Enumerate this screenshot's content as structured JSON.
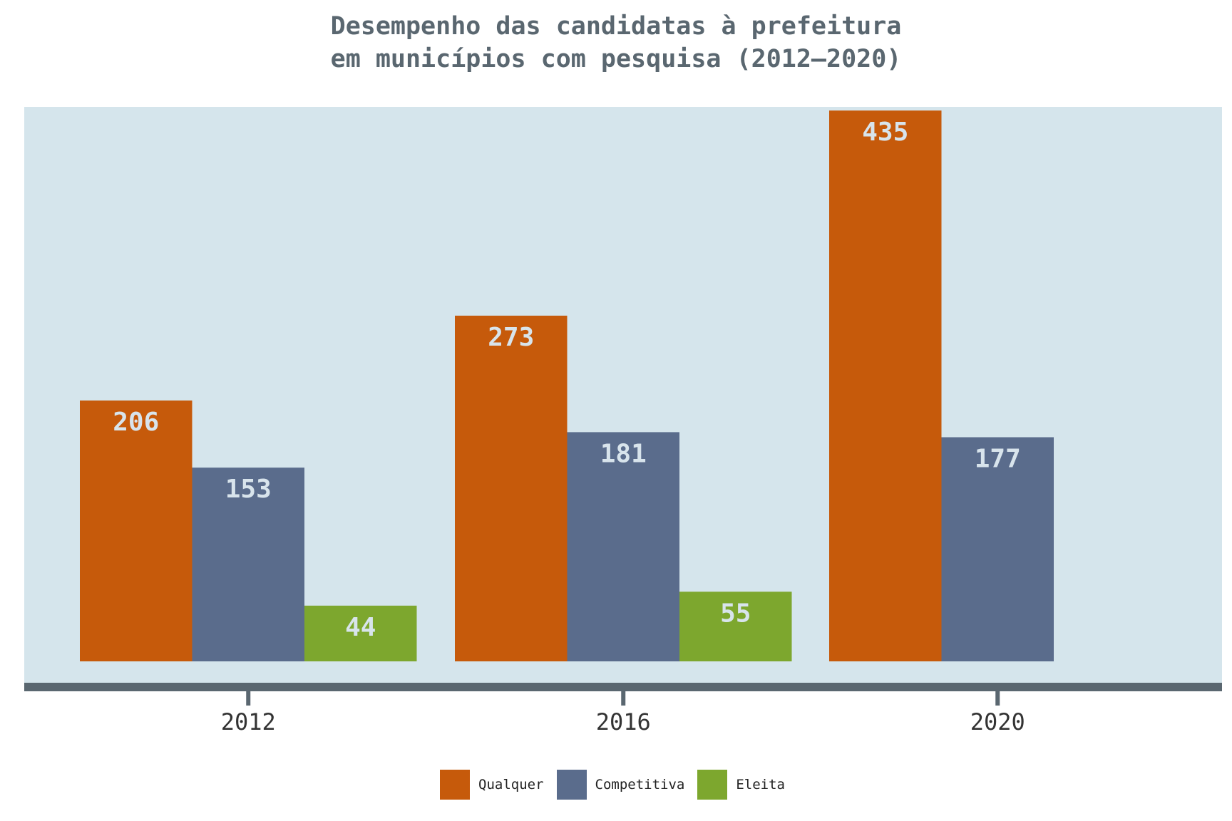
{
  "chart_data": {
    "type": "bar",
    "title": [
      "Desempenho das candidatas à prefeitura",
      "em municípios com pesquisa (2012–2020)"
    ],
    "categories": [
      "2012",
      "2016",
      "2020"
    ],
    "series": [
      {
        "name": "Qualquer",
        "values": [
          206,
          273,
          435
        ],
        "color": "#c65a0b"
      },
      {
        "name": "Competitiva",
        "values": [
          153,
          181,
          177
        ],
        "color": "#5a6c8c"
      },
      {
        "name": "Eleita",
        "values": [
          44,
          55,
          null
        ],
        "color": "#7da72e"
      }
    ],
    "ylim": [
      0,
      457
    ],
    "xlabel": "",
    "ylabel": "",
    "grid": false,
    "legend_position": "bottom",
    "value_label_color": "#d8e4ec",
    "plot_background": "#d5e5ec",
    "axis_color": "#5a6770"
  }
}
